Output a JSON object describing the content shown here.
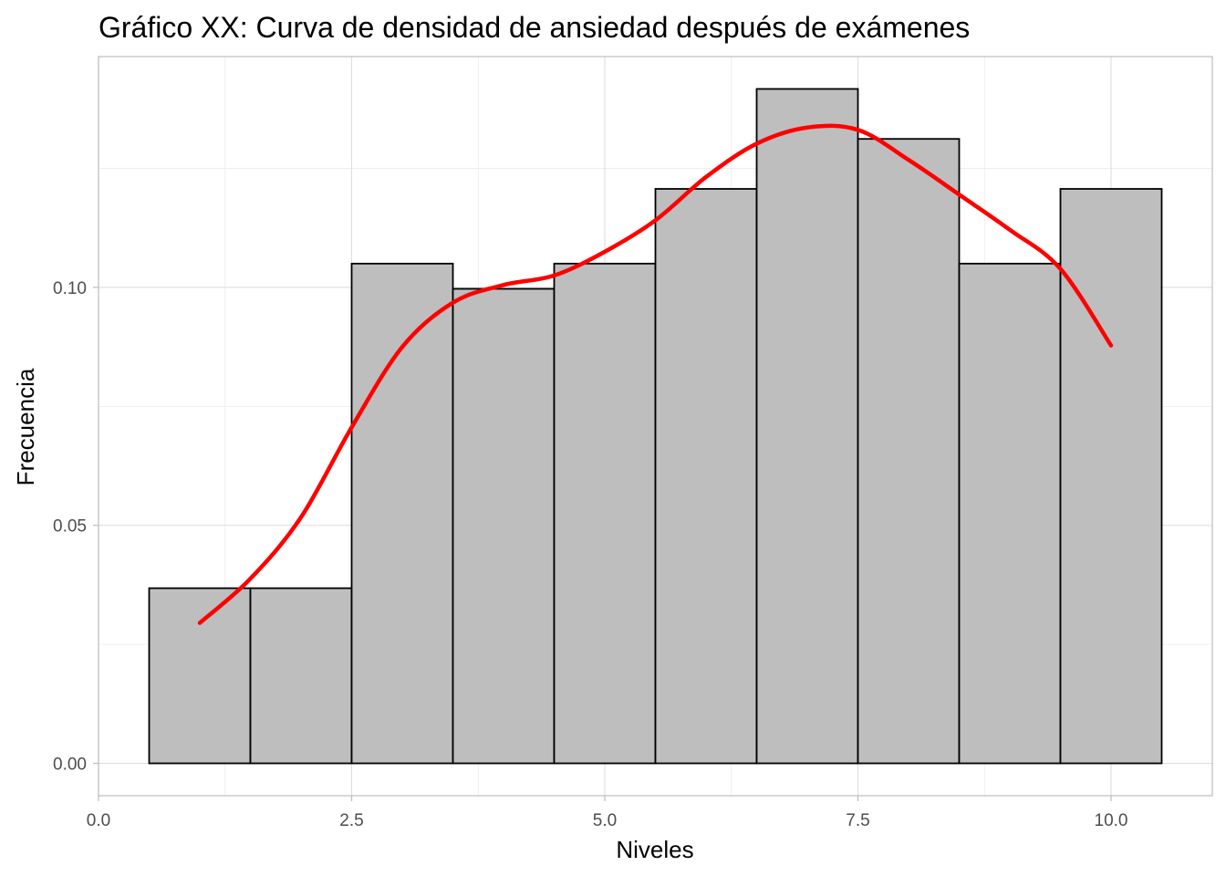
{
  "chart_data": {
    "type": "bar",
    "title": "Gráfico XX: Curva de densidad de ansiedad después de exámenes",
    "xlabel": "Niveles",
    "ylabel": "Frecuencia",
    "xlim": [
      0,
      11
    ],
    "ylim": [
      -0.0068,
      0.1485
    ],
    "x_ticks": [
      0,
      2.5,
      5,
      7.5,
      10
    ],
    "x_tick_labels": [
      "0.0",
      "2.5",
      "5.0",
      "7.5",
      "10.0"
    ],
    "y_ticks": [
      0,
      0.05,
      0.1
    ],
    "y_tick_labels": [
      "0.00",
      "0.05",
      "0.10"
    ],
    "grid": true,
    "legend": "none",
    "histogram": {
      "bin_edges": [
        0.5,
        1.5,
        2.5,
        3.5,
        4.5,
        5.5,
        6.5,
        7.5,
        8.5,
        9.5,
        10.5
      ],
      "values": [
        0.0368,
        0.0368,
        0.105,
        0.0997,
        0.105,
        0.1207,
        0.1417,
        0.1312,
        0.105,
        0.1207
      ],
      "fill_color": "#bebebe",
      "border_color": "#000000"
    },
    "density_curve": {
      "color": "#ff0000",
      "x": [
        1.0,
        1.5,
        2.0,
        2.5,
        3.0,
        3.5,
        4.0,
        4.5,
        5.0,
        5.5,
        6.0,
        6.5,
        7.0,
        7.5,
        8.0,
        8.5,
        9.0,
        9.5,
        10.0
      ],
      "y": [
        0.0295,
        0.0388,
        0.0517,
        0.0706,
        0.0875,
        0.0968,
        0.1005,
        0.1025,
        0.1075,
        0.1141,
        0.1232,
        0.1302,
        0.1336,
        0.1331,
        0.1268,
        0.1195,
        0.1121,
        0.1039,
        0.0878
      ]
    }
  }
}
